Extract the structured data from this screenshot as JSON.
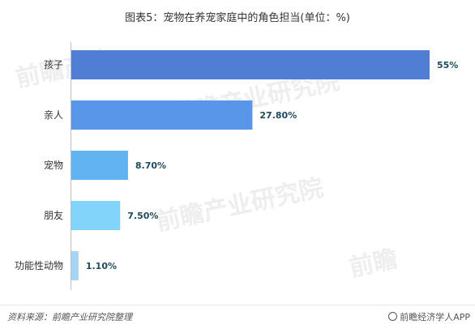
{
  "title": "图表5：宠物在养宠家庭中的角色担当(单位：%)",
  "footer": {
    "source": "资料来源：前瞻产业研究院整理",
    "brand": "前瞻经济学人APP"
  },
  "chart_data": {
    "type": "bar",
    "orientation": "horizontal",
    "title": "图表5：宠物在养宠家庭中的角色担当(单位：%)",
    "xlabel": "",
    "ylabel": "",
    "grid": false,
    "legend": "none",
    "xlim": [
      0,
      55
    ],
    "categories": [
      "孩子",
      "亲人",
      "宠物",
      "朋友",
      "功能性动物"
    ],
    "values": [
      55,
      27.8,
      8.7,
      7.5,
      1.1
    ],
    "value_labels": [
      "55%",
      "27.80%",
      "8.70%",
      "7.50%",
      "1.10%"
    ],
    "colors": [
      "#4f7ed4",
      "#5995e8",
      "#62b3f2",
      "#82d4fb",
      "#a6d4f4"
    ],
    "label_color": "#1e4b5e"
  }
}
